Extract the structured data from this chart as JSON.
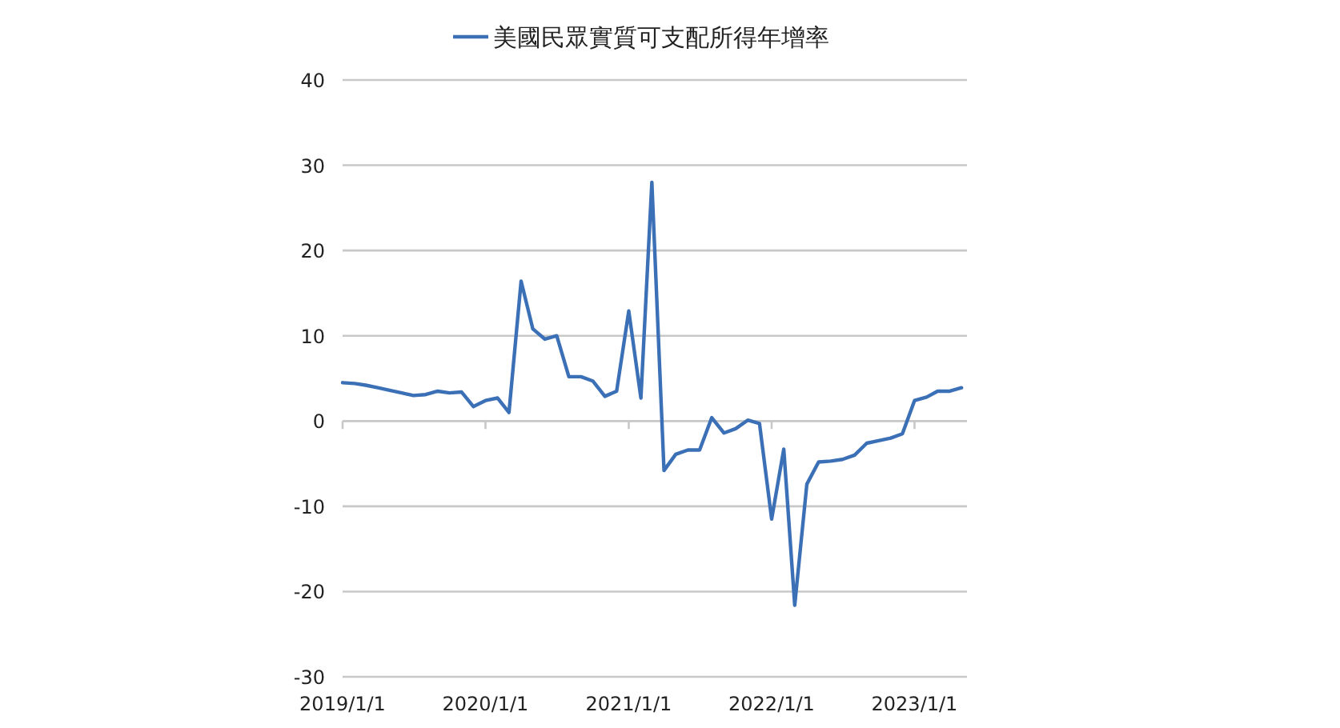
{
  "chart_data": {
    "type": "line",
    "x": [
      "2019-01",
      "2019-02",
      "2019-03",
      "2019-04",
      "2019-05",
      "2019-06",
      "2019-07",
      "2019-08",
      "2019-09",
      "2019-10",
      "2019-11",
      "2019-12",
      "2020-01",
      "2020-02",
      "2020-03",
      "2020-04",
      "2020-05",
      "2020-06",
      "2020-07",
      "2020-08",
      "2020-09",
      "2020-10",
      "2020-11",
      "2020-12",
      "2021-01",
      "2021-02",
      "2021-03",
      "2021-04",
      "2021-05",
      "2021-06",
      "2021-07",
      "2021-08",
      "2021-09",
      "2021-10",
      "2021-11",
      "2021-12",
      "2022-01",
      "2022-02",
      "2022-03",
      "2022-04",
      "2022-05",
      "2022-06",
      "2022-07",
      "2022-08",
      "2022-09",
      "2022-10",
      "2022-11",
      "2022-12",
      "2023-01",
      "2023-02",
      "2023-03",
      "2023-04",
      "2023-05"
    ],
    "series": [
      {
        "name": "美國民眾實質可支配所得年增率",
        "color": "#3b70b6",
        "values": [
          4.5,
          4.4,
          4.2,
          3.9,
          3.6,
          3.3,
          3.0,
          3.1,
          3.5,
          3.3,
          3.4,
          1.7,
          2.4,
          2.7,
          1.0,
          16.4,
          10.8,
          9.6,
          10.0,
          5.2,
          5.2,
          4.7,
          2.9,
          3.5,
          12.9,
          2.7,
          28.0,
          -5.8,
          -3.9,
          -3.4,
          -3.4,
          0.4,
          -1.4,
          -0.9,
          0.1,
          -0.3,
          -11.5,
          -3.3,
          -21.6,
          -7.4,
          -4.8,
          -4.7,
          -4.5,
          -4.0,
          -2.6,
          -2.3,
          -2.0,
          -1.5,
          2.4,
          2.8,
          3.5,
          3.5,
          3.9
        ]
      }
    ],
    "xlim": [
      "2019-01-01",
      "2023-05-15"
    ],
    "xticks": [
      {
        "value": "2019-01-01",
        "label": "2019/1/1"
      },
      {
        "value": "2020-01-01",
        "label": "2020/1/1"
      },
      {
        "value": "2021-01-01",
        "label": "2021/1/1"
      },
      {
        "value": "2022-01-01",
        "label": "2022/1/1"
      },
      {
        "value": "2023-01-01",
        "label": "2023/1/1"
      }
    ],
    "ylim": [
      -30,
      40
    ],
    "yticks": [
      -30,
      -20,
      -10,
      0,
      10,
      20,
      30,
      40
    ],
    "grid": "y",
    "legend": "top",
    "marker": "none",
    "line_style": "solid"
  }
}
